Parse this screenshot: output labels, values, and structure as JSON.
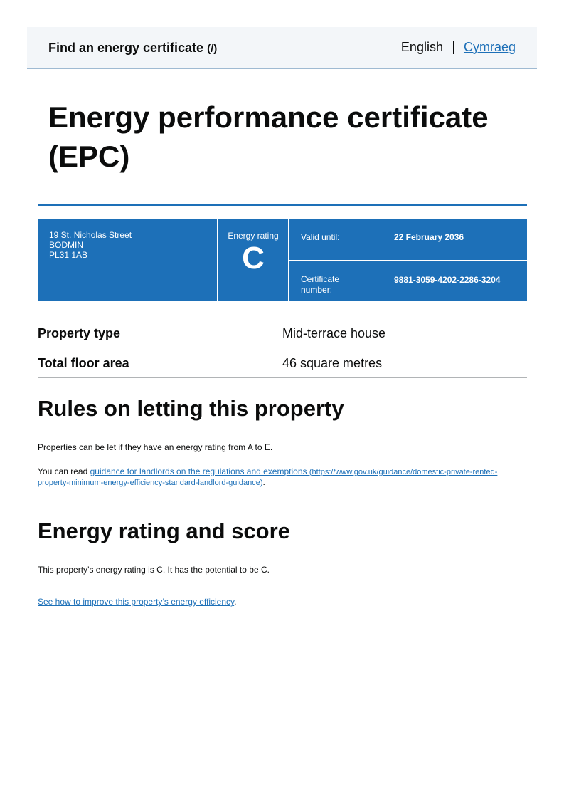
{
  "header": {
    "service_name": "Find an energy certificate",
    "service_suffix": "(/)",
    "lang_current": "English",
    "lang_other": "Cymraeg"
  },
  "title": "Energy performance certificate (EPC)",
  "panel": {
    "address": [
      "19 St. Nicholas Street",
      "BODMIN",
      "PL31 1AB"
    ],
    "rating_label": "Energy rating",
    "rating": "C",
    "valid_label": "Valid until:",
    "valid_value": "22 February 2036",
    "cert_label": "Certificate number:",
    "cert_value": "9881-3059-4202-2286-3204",
    "color": "#1d70b8"
  },
  "summary": [
    {
      "label": "Property type",
      "value": "Mid-terrace house"
    },
    {
      "label": "Total floor area",
      "value": "46 square metres"
    }
  ],
  "rules": {
    "heading": "Rules on letting this property",
    "para1": "Properties can be let if they have an energy rating from A to E.",
    "para2_prefix": "You can read ",
    "link_text": "guidance for landlords on the regulations and exemptions",
    "link_url": "(https://www.gov.uk/guidance/domestic-private-rented-property-minimum-energy-efficiency-standard-landlord-guidance)",
    "para2_suffix": "."
  },
  "score": {
    "heading": "Energy rating and score",
    "para": "This property’s energy rating is C. It has the potential to be C.",
    "link_text": "See how to improve this property’s energy efficiency",
    "link_suffix": "."
  }
}
